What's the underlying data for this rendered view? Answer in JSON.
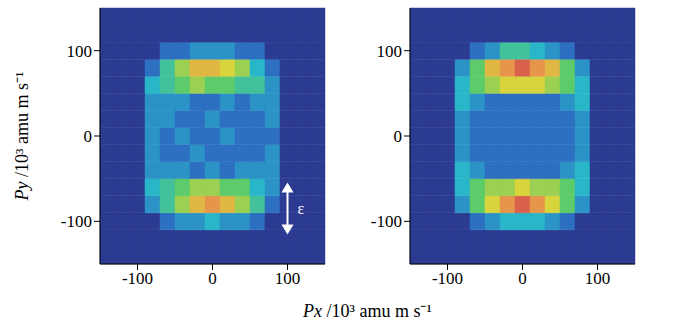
{
  "x_label": "Px /10³ amu m s⁻¹",
  "chart_data": [
    {
      "type": "heatmap",
      "y_label": "Py /10³ amu m s⁻¹",
      "xlim": [
        -150,
        150
      ],
      "ylim": [
        -150,
        150
      ],
      "xticks": [
        -100,
        0,
        100
      ],
      "yticks": [
        -100,
        0,
        100
      ],
      "zlim": [
        0,
        10
      ],
      "annotations": [
        {
          "text": "ε",
          "x": 100,
          "y": -85
        }
      ],
      "x_edges": [
        -150,
        -130,
        -110,
        -90,
        -70,
        -50,
        -30,
        -10,
        10,
        30,
        50,
        70,
        90,
        110,
        130,
        150
      ],
      "y_edges": [
        -150,
        -130,
        -110,
        -90,
        -70,
        -50,
        -30,
        -10,
        10,
        30,
        50,
        70,
        90,
        110,
        130,
        150
      ],
      "cells": [
        [
          0,
          0,
          0,
          0,
          0,
          0,
          0,
          0,
          0,
          0,
          0,
          0,
          0,
          0,
          0
        ],
        [
          0,
          0,
          0,
          0,
          0,
          0,
          0,
          0,
          0,
          0,
          0,
          0,
          0,
          0,
          0
        ],
        [
          0,
          0,
          0,
          0,
          1,
          2,
          2,
          3,
          2,
          2,
          1,
          0,
          0,
          0,
          0
        ],
        [
          0,
          0,
          0,
          2,
          4,
          6,
          8,
          9,
          8,
          6,
          4,
          1,
          0,
          0,
          0
        ],
        [
          0,
          0,
          0,
          3,
          4,
          5,
          6,
          6,
          5,
          5,
          3,
          2,
          0,
          0,
          0
        ],
        [
          0,
          0,
          0,
          2,
          2,
          2,
          1,
          2,
          1,
          2,
          2,
          2,
          0,
          0,
          0
        ],
        [
          0,
          0,
          0,
          2,
          1,
          1,
          2,
          1,
          1,
          1,
          1,
          2,
          0,
          0,
          0
        ],
        [
          0,
          0,
          0,
          2,
          1,
          2,
          1,
          1,
          2,
          1,
          1,
          1,
          0,
          0,
          0
        ],
        [
          0,
          0,
          0,
          2,
          2,
          1,
          1,
          2,
          1,
          1,
          1,
          2,
          0,
          0,
          0
        ],
        [
          0,
          0,
          0,
          2,
          2,
          2,
          1,
          1,
          2,
          1,
          2,
          2,
          0,
          0,
          0
        ],
        [
          0,
          0,
          0,
          3,
          4,
          5,
          6,
          5,
          5,
          4,
          4,
          2,
          0,
          0,
          0
        ],
        [
          0,
          0,
          0,
          1,
          4,
          6,
          8,
          8,
          7,
          6,
          3,
          1,
          0,
          0,
          0
        ],
        [
          0,
          0,
          0,
          0,
          1,
          1,
          2,
          2,
          2,
          1,
          1,
          0,
          0,
          0,
          0
        ],
        [
          0,
          0,
          0,
          0,
          0,
          0,
          0,
          0,
          0,
          0,
          0,
          0,
          0,
          0,
          0
        ],
        [
          0,
          0,
          0,
          0,
          0,
          0,
          0,
          0,
          0,
          0,
          0,
          0,
          0,
          0,
          0
        ]
      ]
    },
    {
      "type": "heatmap",
      "xlim": [
        -150,
        150
      ],
      "ylim": [
        -150,
        150
      ],
      "xticks": [
        -100,
        0,
        100
      ],
      "yticks": [
        -100,
        0,
        100
      ],
      "zlim": [
        0,
        10
      ],
      "x_edges": [
        -150,
        -130,
        -110,
        -90,
        -70,
        -50,
        -30,
        -10,
        10,
        30,
        50,
        70,
        90,
        110,
        130,
        150
      ],
      "y_edges": [
        -150,
        -130,
        -110,
        -90,
        -70,
        -50,
        -30,
        -10,
        10,
        30,
        50,
        70,
        90,
        110,
        130,
        150
      ],
      "cells": [
        [
          0,
          0,
          0,
          0,
          0,
          0,
          0,
          0,
          0,
          0,
          0,
          0,
          0,
          0,
          0
        ],
        [
          0,
          0,
          0,
          0,
          0,
          0,
          0,
          0,
          0,
          0,
          0,
          0,
          0,
          0,
          0
        ],
        [
          0,
          0,
          0,
          0,
          1,
          2,
          3,
          3,
          3,
          2,
          1,
          0,
          0,
          0,
          0
        ],
        [
          0,
          0,
          0,
          2,
          5,
          7,
          9,
          10,
          9,
          7,
          5,
          2,
          0,
          0,
          0
        ],
        [
          0,
          0,
          0,
          3,
          5,
          6,
          6,
          7,
          6,
          6,
          5,
          3,
          0,
          0,
          0
        ],
        [
          0,
          0,
          0,
          3,
          2,
          1,
          1,
          1,
          1,
          1,
          2,
          3,
          0,
          0,
          0
        ],
        [
          0,
          0,
          0,
          2,
          1,
          1,
          1,
          1,
          1,
          1,
          1,
          2,
          0,
          0,
          0
        ],
        [
          0,
          0,
          0,
          2,
          1,
          1,
          1,
          1,
          1,
          1,
          1,
          2,
          0,
          0,
          0
        ],
        [
          0,
          0,
          0,
          2,
          1,
          1,
          1,
          1,
          1,
          1,
          1,
          2,
          0,
          0,
          0
        ],
        [
          0,
          0,
          0,
          3,
          2,
          1,
          1,
          1,
          1,
          1,
          2,
          3,
          0,
          0,
          0
        ],
        [
          0,
          0,
          0,
          3,
          5,
          6,
          7,
          7,
          7,
          6,
          5,
          3,
          0,
          0,
          0
        ],
        [
          0,
          0,
          0,
          2,
          5,
          8,
          9,
          10,
          9,
          8,
          5,
          2,
          0,
          0,
          0
        ],
        [
          0,
          0,
          0,
          0,
          1,
          2,
          4,
          4,
          3,
          2,
          1,
          0,
          0,
          0,
          0
        ],
        [
          0,
          0,
          0,
          0,
          0,
          0,
          0,
          0,
          0,
          0,
          0,
          0,
          0,
          0,
          0
        ],
        [
          0,
          0,
          0,
          0,
          0,
          0,
          0,
          0,
          0,
          0,
          0,
          0,
          0,
          0,
          0
        ]
      ]
    }
  ]
}
